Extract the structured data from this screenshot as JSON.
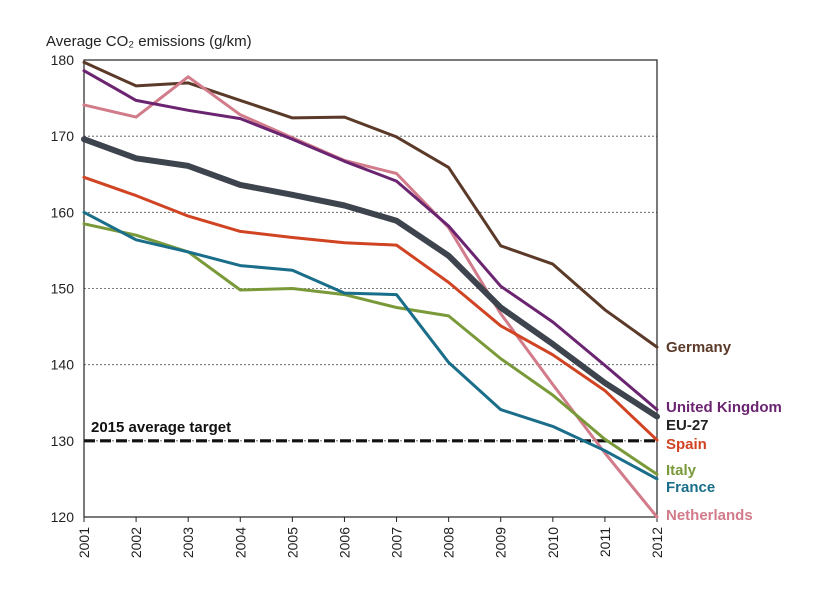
{
  "chart_data": {
    "type": "line",
    "ylabel": "Average CO₂ emissions (g/km)",
    "ylim": [
      120,
      180
    ],
    "yticks": [
      120,
      130,
      140,
      150,
      160,
      170,
      180
    ],
    "grid": "horizontal dashed",
    "x": [
      "2001",
      "2002",
      "2003",
      "2004",
      "2005",
      "2006",
      "2007",
      "2008",
      "2009",
      "2010",
      "2011",
      "2012"
    ],
    "target": {
      "label": "2015 average target",
      "value": 130
    },
    "series": [
      {
        "name": "Germany",
        "color": "#5b3a29",
        "values": [
          179.7,
          176.6,
          177.0,
          174.7,
          172.4,
          172.5,
          169.9,
          165.9,
          155.6,
          153.2,
          147.2,
          142.3
        ]
      },
      {
        "name": "Netherlands",
        "color": "#d27b8a",
        "values": [
          174.1,
          172.5,
          177.8,
          172.8,
          169.8,
          166.8,
          165.1,
          158.0,
          146.7,
          137.4,
          128.4,
          120.0
        ]
      },
      {
        "name": "United Kingdom",
        "color": "#6a2470",
        "values": [
          178.6,
          174.7,
          173.4,
          172.3,
          169.6,
          166.7,
          164.1,
          158.2,
          150.3,
          145.6,
          139.9,
          134.1
        ]
      },
      {
        "name": "Spain",
        "color": "#d04423",
        "values": [
          164.6,
          162.2,
          159.5,
          157.5,
          156.7,
          156.0,
          155.7,
          150.8,
          145.1,
          141.3,
          136.6,
          130.1
        ]
      },
      {
        "name": "Italy",
        "color": "#7a9a3a",
        "values": [
          158.5,
          157.0,
          154.8,
          149.8,
          150.0,
          149.2,
          147.5,
          146.4,
          140.8,
          136.0,
          130.2,
          125.6
        ]
      },
      {
        "name": "France",
        "color": "#1a6e8a",
        "values": [
          160.0,
          156.4,
          154.8,
          153.0,
          152.4,
          149.4,
          149.2,
          140.3,
          134.1,
          131.9,
          128.7,
          125.0
        ]
      },
      {
        "name": "EU-27",
        "color": "#3d444d",
        "width": 6,
        "values": [
          169.6,
          167.1,
          166.1,
          163.6,
          162.3,
          160.9,
          158.9,
          154.3,
          147.5,
          142.7,
          137.6,
          133.2
        ]
      }
    ]
  }
}
